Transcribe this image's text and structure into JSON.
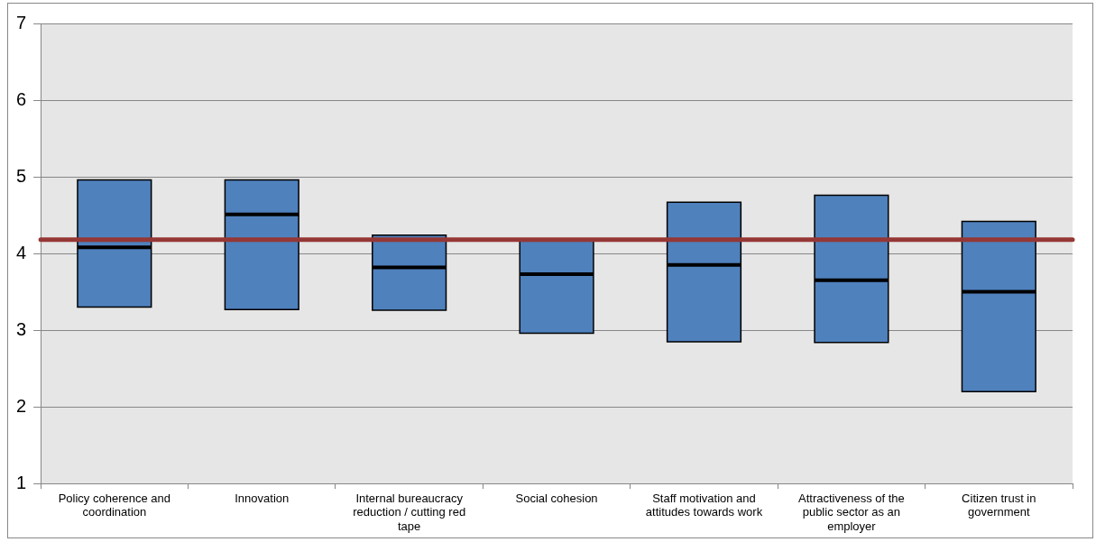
{
  "chart_data": {
    "type": "box",
    "categories": [
      "Policy coherence and coordination",
      "Innovation",
      "Internal bureaucracy reduction / cutting red tape",
      "Social cohesion",
      "Staff motivation and attitudes towards work",
      "Attractiveness of the public sector as an employer",
      "Citizen trust in government"
    ],
    "series": [
      {
        "color": "#4f81bd",
        "boxes": [
          {
            "low": 3.3,
            "q1": 3.3,
            "median": 4.08,
            "q3": 4.96,
            "high": 4.96
          },
          {
            "low": 3.27,
            "q1": 3.27,
            "median": 4.51,
            "q3": 4.96,
            "high": 4.96
          },
          {
            "low": 3.26,
            "q1": 3.26,
            "median": 3.82,
            "q3": 4.24,
            "high": 4.24
          },
          {
            "low": 2.96,
            "q1": 2.96,
            "median": 3.73,
            "q3": 4.18,
            "high": 4.18
          },
          {
            "low": 2.85,
            "q1": 2.85,
            "median": 3.85,
            "q3": 4.67,
            "high": 4.67
          },
          {
            "low": 2.84,
            "q1": 2.84,
            "median": 3.65,
            "q3": 4.76,
            "high": 4.76
          },
          {
            "low": 2.2,
            "q1": 2.2,
            "median": 3.5,
            "q3": 4.42,
            "high": 4.42
          }
        ]
      }
    ],
    "ylim": [
      1,
      7
    ],
    "yticks": [
      1,
      2,
      3,
      4,
      5,
      6,
      7
    ],
    "grid": "y",
    "ref_lines": [
      {
        "axis": "y",
        "value": 4.18,
        "color": "#953735"
      }
    ]
  }
}
